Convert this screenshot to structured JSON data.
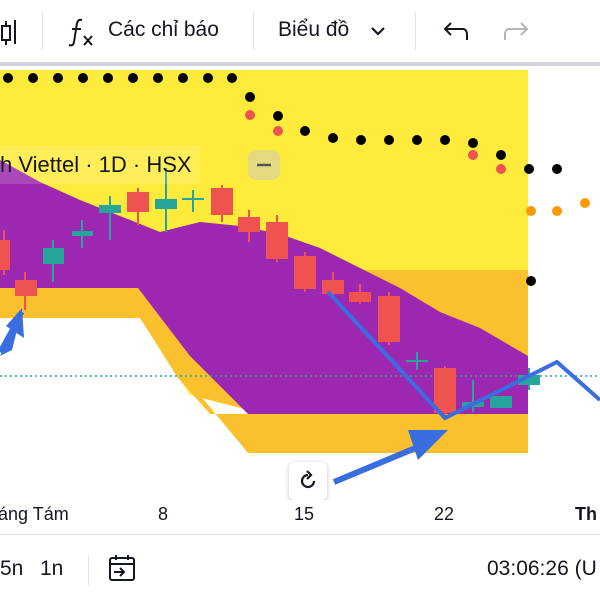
{
  "toolbar": {
    "indicators_label": "Các chỉ báo",
    "chart_type_label": "Biểu đồ",
    "fx_icon": "fx-icon",
    "undo_icon": "undo-icon",
    "redo_icon": "redo-icon"
  },
  "chart": {
    "legend_text": "h Viettel · 1D · HSX",
    "x_labels": [
      "áng Tám",
      "8",
      "15",
      "22",
      "Th"
    ],
    "colors": {
      "background": "#ffeb3b",
      "cloud": "#9c27b0",
      "band": "#fbc02d",
      "bull": "#26a69a",
      "bear": "#ef5350",
      "arrow": "#3a6de0",
      "dot_black": "#000000",
      "dot_red": "#ef5350",
      "dot_orange": "#ff9800"
    }
  },
  "bottom": {
    "range_5n": "5n",
    "range_1n": "1n",
    "time": "03:06:26 (U"
  }
}
